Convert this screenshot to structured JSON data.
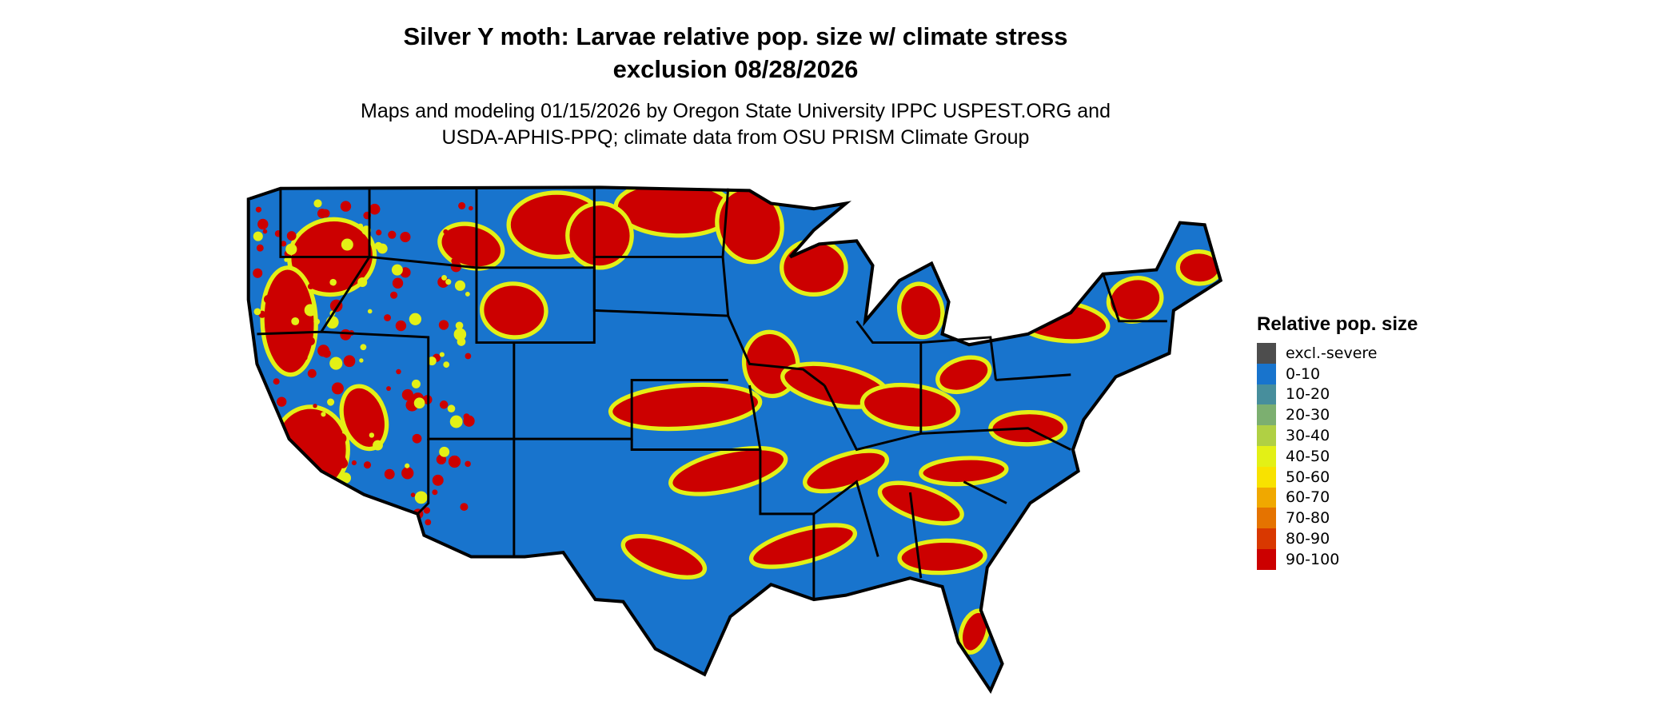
{
  "title": {
    "line1": "Silver Y moth: Larvae relative pop. size w/ climate stress",
    "line2": "exclusion 08/28/2026"
  },
  "subtitle": {
    "line1": "Maps and modeling 01/15/2026 by Oregon State University IPPC USPEST.ORG and",
    "line2": "USDA-APHIS-PPQ; climate data from OSU PRISM Climate Group"
  },
  "map": {
    "region": "Contiguous United States",
    "base_color": "#1874CD",
    "border_color": "#000000"
  },
  "legend": {
    "title": "Relative pop. size",
    "items": [
      {
        "label": "excl.-severe",
        "color": "#4D4D4D"
      },
      {
        "label": "0-10",
        "color": "#1874CD"
      },
      {
        "label": "10-20",
        "color": "#478E9C"
      },
      {
        "label": "20-30",
        "color": "#7CAF70"
      },
      {
        "label": "30-40",
        "color": "#B0D044"
      },
      {
        "label": "40-50",
        "color": "#E3F016"
      },
      {
        "label": "50-60",
        "color": "#F8E200"
      },
      {
        "label": "60-70",
        "color": "#F0A800"
      },
      {
        "label": "70-80",
        "color": "#E57300"
      },
      {
        "label": "80-90",
        "color": "#D93800"
      },
      {
        "label": "90-100",
        "color": "#CC0000"
      }
    ]
  }
}
